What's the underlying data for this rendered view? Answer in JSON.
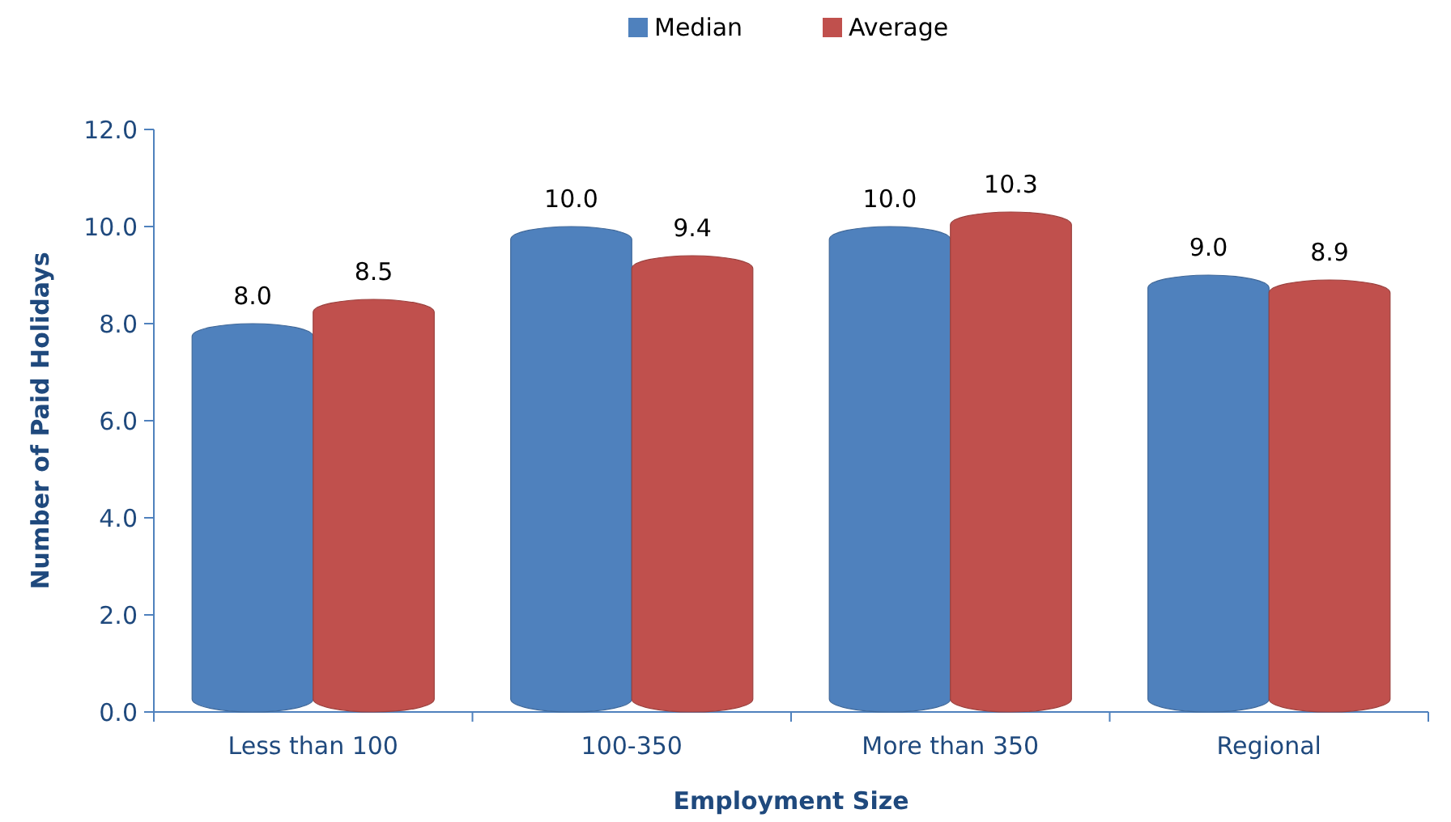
{
  "chart_data": {
    "type": "bar",
    "xlabel": "Employment Size",
    "ylabel": "Number of Paid Holidays",
    "categories": [
      "Less than 100",
      "100-350",
      "More than 350",
      "Regional"
    ],
    "series": [
      {
        "name": "Median",
        "color": "#4f81bd",
        "values": [
          8.0,
          10.0,
          10.0,
          9.0
        ],
        "value_labels": [
          "8.0",
          "10.0",
          "10.0",
          "9.0"
        ]
      },
      {
        "name": "Average",
        "color": "#c0504d",
        "values": [
          8.5,
          9.4,
          10.3,
          8.9
        ],
        "value_labels": [
          "8.5",
          "9.4",
          "10.3",
          "8.9"
        ]
      }
    ],
    "ylim": [
      0,
      12
    ],
    "yticks": [
      {
        "value": 0,
        "label": "0.0"
      },
      {
        "value": 2,
        "label": "2.0"
      },
      {
        "value": 4,
        "label": "4.0"
      },
      {
        "value": 6,
        "label": "6.0"
      },
      {
        "value": 8,
        "label": "8.0"
      },
      {
        "value": 10,
        "label": "10.0"
      },
      {
        "value": 12,
        "label": "12.0"
      }
    ],
    "legend": "top",
    "grid": false
  }
}
